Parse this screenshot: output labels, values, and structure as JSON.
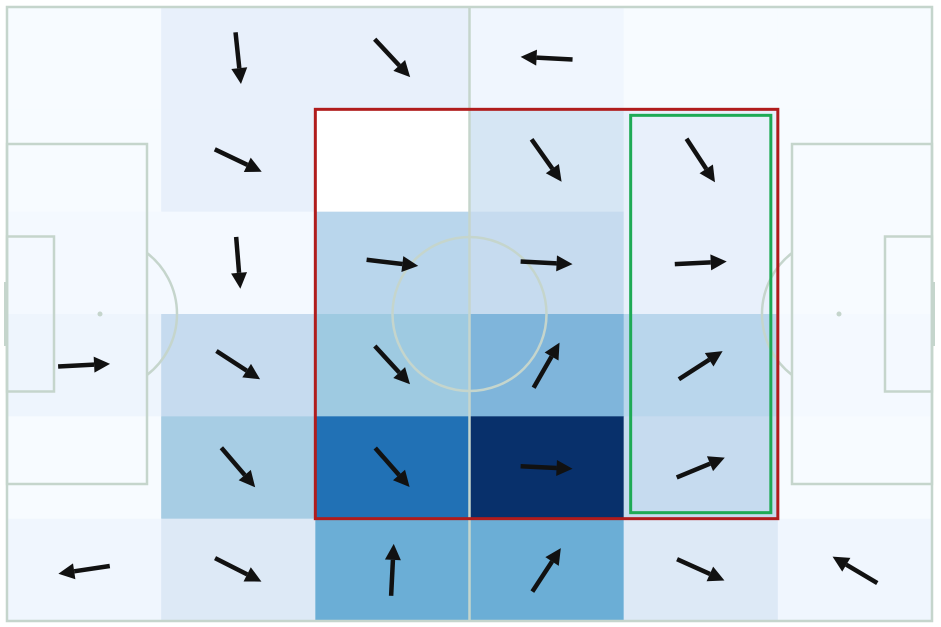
{
  "diagram": {
    "type": "football-pitch-heatmap-with-flow-arrows",
    "grid": {
      "cols": 6,
      "rows": 6
    },
    "line_color": "#c5d5cc",
    "arrow_color": "#111111",
    "highlight_red": "#b01c1c",
    "highlight_green": "#1faa55",
    "cell_colors": [
      [
        "#f7fbff",
        "#e8f0fb",
        "#e8f0fb",
        "#f0f6fe",
        "#f7fbff",
        "#f7fbff"
      ],
      [
        "#f7fbff",
        "#e8f0fb",
        "#ffffff",
        "#d6e6f4",
        "#e8f0fb",
        "#f7fbff"
      ],
      [
        "#f4f9ff",
        "#f4f9ff",
        "#b9d6ec",
        "#c6dbef",
        "#e8f0fb",
        "#f7fbff"
      ],
      [
        "#eef5fd",
        "#c6dbef",
        "#9ecae1",
        "#7fb5db",
        "#b9d6ec",
        "#f4f9ff"
      ],
      [
        "#f7fbff",
        "#a7cde4",
        "#2171b5",
        "#08306b",
        "#c6dbef",
        "#f7fbff"
      ],
      [
        "#f0f6fe",
        "#dde9f6",
        "#6baed6",
        "#6baed6",
        "#dde9f6",
        "#f0f6fe"
      ]
    ],
    "flow_vectors": [
      [
        null,
        [
          0.1,
          0.95
        ],
        [
          0.7,
          0.75
        ],
        [
          -1.0,
          -0.05
        ],
        null,
        null
      ],
      [
        null,
        [
          0.88,
          0.42
        ],
        null,
        [
          0.58,
          0.82
        ],
        [
          0.55,
          0.84
        ],
        null
      ],
      [
        null,
        [
          0.08,
          0.99
        ],
        [
          1.0,
          0.12
        ],
        [
          1.0,
          0.05
        ],
        [
          1.0,
          -0.05
        ],
        null
      ],
      [
        [
          1.0,
          -0.05
        ],
        [
          0.85,
          0.55
        ],
        [
          0.68,
          0.74
        ],
        [
          0.5,
          -0.87
        ],
        [
          0.84,
          -0.54
        ],
        null
      ],
      [
        null,
        [
          0.65,
          0.76
        ],
        [
          0.66,
          0.75
        ],
        [
          1.0,
          0.05
        ],
        [
          0.92,
          -0.38
        ],
        null
      ],
      [
        [
          -1.0,
          0.15
        ],
        [
          0.89,
          0.45
        ],
        [
          0.05,
          -1.0
        ],
        [
          0.55,
          -0.84
        ],
        [
          0.91,
          0.41
        ],
        [
          -0.86,
          -0.51
        ]
      ]
    ],
    "highlights": [
      {
        "name": "red-zone",
        "color": "#b01c1c",
        "col_start": 2,
        "col_end": 5,
        "row_start": 1,
        "row_end": 5
      },
      {
        "name": "green-zone",
        "color": "#1faa55",
        "col_start": 4,
        "col_end": 5,
        "row_start": 1,
        "row_end": 5
      }
    ]
  }
}
